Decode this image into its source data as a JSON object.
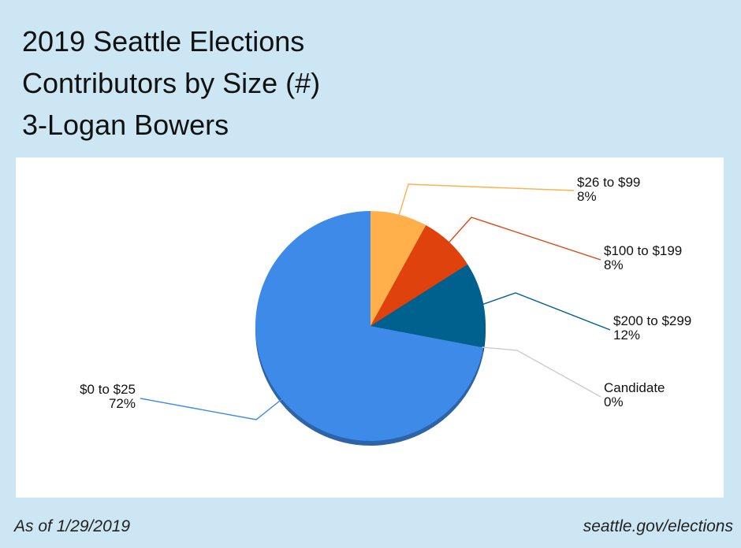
{
  "title": {
    "line1": "2019 Seattle Elections",
    "line2": "Contributors by Size (#)",
    "line3": "3-Logan Bowers"
  },
  "footer": {
    "as_of": "As of 1/29/2019",
    "source": "seattle.gov/elections"
  },
  "chart_data": {
    "type": "pie",
    "title": "2019 Seattle Elections Contributors by Size (#) 3-Logan Bowers",
    "slices": [
      {
        "label": "$0 to $25",
        "percent_label": "72%",
        "value": 72,
        "color": "#3e8ae8"
      },
      {
        "label": "$26 to $99",
        "percent_label": "8%",
        "value": 8,
        "color": "#ffb04a"
      },
      {
        "label": "$100 to $199",
        "percent_label": "8%",
        "value": 8,
        "color": "#e0420e"
      },
      {
        "label": "$200 to $299",
        "percent_label": "12%",
        "value": 12,
        "color": "#00608e"
      },
      {
        "label": "Candidate",
        "percent_label": "0%",
        "value": 0,
        "color": "#cccccc"
      }
    ]
  }
}
